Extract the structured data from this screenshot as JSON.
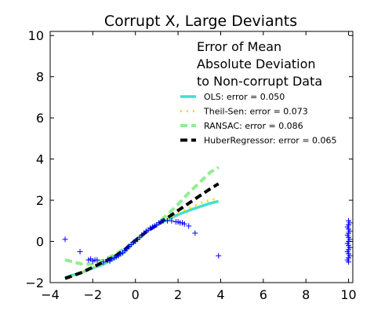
{
  "chart_data": {
    "type": "scatter",
    "title": "Corrupt X, Large Deviants",
    "xlabel": "",
    "ylabel": "",
    "xlim": [
      -4,
      10.2
    ],
    "ylim": [
      -2,
      10.2
    ],
    "xticks": [
      -4,
      -2,
      0,
      2,
      4,
      6,
      8,
      10
    ],
    "yticks": [
      -2,
      0,
      2,
      4,
      6,
      8,
      10
    ],
    "grid": false,
    "legend_placement": "top-right",
    "legend_title": "Error of Mean\nAbsolute Deviation\nto Non-corrupt Data",
    "scatter": {
      "marker": "+",
      "color": "#0000ff",
      "points": [
        [
          -3.3,
          0.1
        ],
        [
          -2.6,
          -0.5
        ],
        [
          -2.2,
          -0.9
        ],
        [
          -2.1,
          -0.85
        ],
        [
          -2.0,
          -0.95
        ],
        [
          -1.9,
          -0.9
        ],
        [
          -1.8,
          -0.9
        ],
        [
          -1.5,
          -1.0
        ],
        [
          -1.3,
          -0.9
        ],
        [
          -1.2,
          -0.95
        ],
        [
          -1.1,
          -0.85
        ],
        [
          -1.0,
          -0.8
        ],
        [
          -0.9,
          -0.75
        ],
        [
          -0.8,
          -0.7
        ],
        [
          -0.7,
          -0.6
        ],
        [
          -0.6,
          -0.55
        ],
        [
          -0.5,
          -0.45
        ],
        [
          -0.4,
          -0.35
        ],
        [
          -0.3,
          -0.25
        ],
        [
          -0.2,
          -0.15
        ],
        [
          -0.1,
          -0.05
        ],
        [
          0.0,
          0.0
        ],
        [
          0.1,
          0.1
        ],
        [
          0.2,
          0.2
        ],
        [
          0.3,
          0.3
        ],
        [
          0.4,
          0.4
        ],
        [
          0.5,
          0.5
        ],
        [
          0.6,
          0.55
        ],
        [
          0.7,
          0.65
        ],
        [
          0.8,
          0.7
        ],
        [
          0.9,
          0.75
        ],
        [
          1.0,
          0.8
        ],
        [
          1.1,
          0.9
        ],
        [
          1.2,
          0.95
        ],
        [
          1.3,
          1.0
        ],
        [
          1.5,
          1.0
        ],
        [
          1.7,
          1.0
        ],
        [
          1.9,
          0.95
        ],
        [
          2.0,
          0.95
        ],
        [
          2.1,
          0.9
        ],
        [
          2.2,
          0.9
        ],
        [
          2.3,
          0.85
        ],
        [
          2.5,
          0.75
        ],
        [
          2.8,
          0.4
        ],
        [
          3.9,
          -0.7
        ],
        [
          10.0,
          1.0
        ],
        [
          10.0,
          0.8
        ],
        [
          10.0,
          0.6
        ],
        [
          10.0,
          0.4
        ],
        [
          10.0,
          0.2
        ],
        [
          10.0,
          0.0
        ],
        [
          10.0,
          -0.2
        ],
        [
          10.0,
          -0.4
        ],
        [
          10.0,
          -0.6
        ],
        [
          10.0,
          -0.8
        ],
        [
          10.0,
          -1.0
        ],
        [
          10.05,
          0.9
        ],
        [
          10.05,
          0.5
        ],
        [
          10.05,
          0.1
        ],
        [
          10.05,
          -0.3
        ],
        [
          10.05,
          -0.7
        ],
        [
          9.95,
          0.7
        ],
        [
          9.95,
          0.3
        ],
        [
          9.95,
          -0.1
        ],
        [
          9.95,
          -0.5
        ],
        [
          9.95,
          -0.9
        ]
      ]
    },
    "series": [
      {
        "name": "OLS: error = 0.050",
        "color": "#40e0d0",
        "style": "solid",
        "x": [
          -3.3,
          -2.5,
          -2.0,
          -1.5,
          -1.0,
          -0.5,
          0.0,
          0.5,
          1.0,
          1.5,
          2.0,
          2.5,
          3.0,
          3.5,
          3.9
        ],
        "y": [
          -1.75,
          -1.5,
          -1.3,
          -1.1,
          -0.85,
          -0.5,
          0.0,
          0.45,
          0.8,
          1.05,
          1.3,
          1.5,
          1.68,
          1.85,
          1.95
        ]
      },
      {
        "name": "Theil-Sen: error = 0.073",
        "color": "#ffd700",
        "style": "dotted",
        "x": [
          -3.3,
          -3.0,
          -2.5,
          -2.0,
          -1.5,
          -1.0,
          -0.5,
          0.0,
          0.5,
          1.0,
          1.5,
          2.0,
          2.5,
          3.0,
          3.5,
          3.9
        ],
        "y": [
          -1.8,
          -1.7,
          -1.5,
          -1.3,
          -1.05,
          -0.8,
          -0.5,
          0.05,
          0.45,
          0.8,
          1.1,
          1.35,
          1.6,
          1.85,
          2.0,
          2.1
        ]
      },
      {
        "name": "RANSAC: error = 0.086",
        "color": "#90ee90",
        "style": "dashed",
        "x": [
          -3.3,
          -2.5,
          -2.0,
          -1.5,
          -1.0,
          -0.5,
          0.0,
          0.5,
          1.0,
          1.5,
          2.0,
          2.5,
          3.0,
          3.5,
          3.9
        ],
        "y": [
          -0.9,
          -1.1,
          -1.1,
          -0.9,
          -0.65,
          -0.35,
          0.05,
          0.45,
          0.85,
          1.3,
          1.8,
          2.35,
          2.85,
          3.35,
          3.6
        ]
      },
      {
        "name": "HuberRegressor: error = 0.065",
        "color": "#000000",
        "style": "dashed",
        "x": [
          -3.3,
          -2.5,
          -2.0,
          -1.5,
          -1.0,
          -0.5,
          0.0,
          0.5,
          1.0,
          1.5,
          2.0,
          2.5,
          3.0,
          3.5,
          3.9
        ],
        "y": [
          -1.8,
          -1.5,
          -1.25,
          -1.0,
          -0.75,
          -0.4,
          0.05,
          0.45,
          0.8,
          1.15,
          1.5,
          1.85,
          2.2,
          2.55,
          2.8
        ]
      }
    ]
  }
}
